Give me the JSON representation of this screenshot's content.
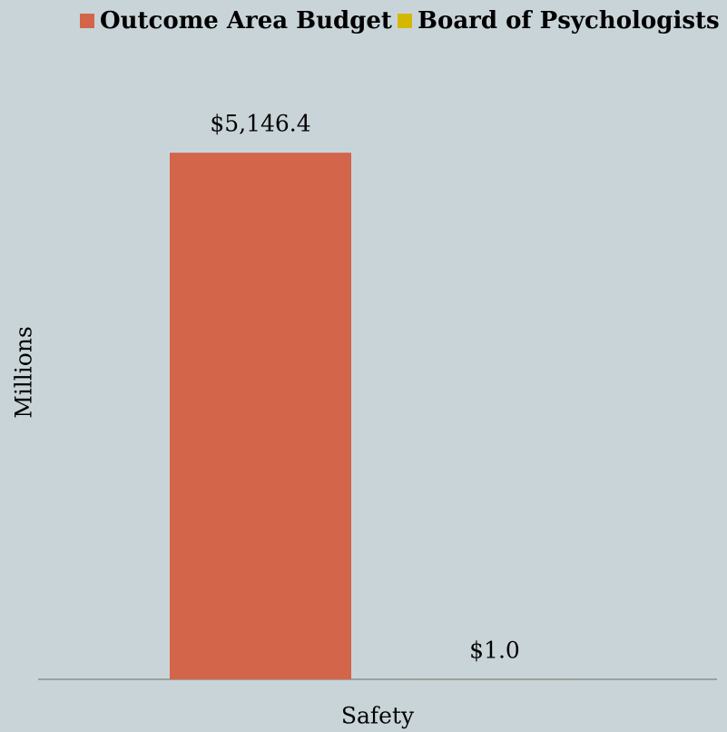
{
  "chart_data": {
    "type": "bar",
    "y_label": "Millions",
    "categories": [
      "Safety"
    ],
    "series": [
      {
        "name": "Outcome Area Budget",
        "color": "#d2654a",
        "values": [
          5146.4
        ],
        "value_labels": [
          "$5,146.4"
        ]
      },
      {
        "name": "Board of Psychologists",
        "color": "#d4b800",
        "values": [
          1.0
        ],
        "value_labels": [
          "$1.0"
        ]
      }
    ],
    "ylim": [
      0,
      6000
    ],
    "legend": "top",
    "grid": false
  }
}
